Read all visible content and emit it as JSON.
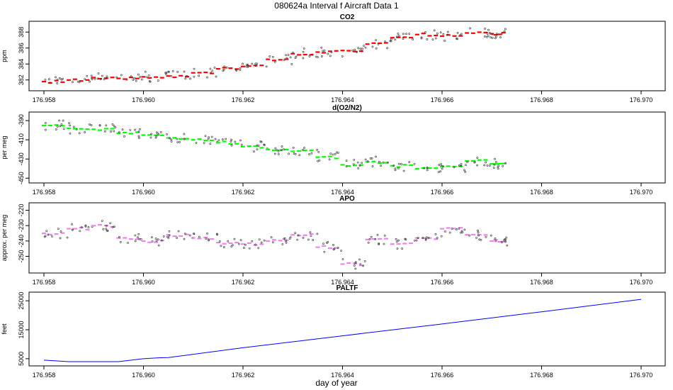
{
  "title": "080624a   Interval f Aircraft Data 1",
  "xlabel": "day of year",
  "chart_data": [
    {
      "type": "scatter",
      "title": "CO2",
      "ylabel": "ppm",
      "xlim": [
        176.958,
        176.97
      ],
      "ylim": [
        381,
        389
      ],
      "xticks": [
        "176.958",
        "176.960",
        "176.962",
        "176.964",
        "176.966",
        "176.968",
        "176.970"
      ],
      "yticks": [
        "382",
        "384",
        "386",
        "388"
      ],
      "color": "#ff0000",
      "series": [
        {
          "x": [
            176.958,
            176.9585,
            176.959,
            176.9595,
            176.96,
            176.9605,
            176.961,
            176.9615,
            176.962,
            176.9625,
            176.963,
            176.9635,
            176.964,
            176.9645,
            176.965,
            176.9655,
            176.966,
            176.9665,
            176.967
          ],
          "values": [
            381.8,
            382.0,
            382.3,
            382.2,
            382.4,
            382.5,
            382.9,
            383.4,
            383.7,
            384.6,
            385.3,
            385.5,
            385.7,
            386.5,
            387.3,
            387.7,
            387.5,
            387.9,
            387.8
          ]
        }
      ]
    },
    {
      "type": "scatter",
      "title": "d(O2/N2)",
      "ylabel": "per meg",
      "xlim": [
        176.958,
        176.97
      ],
      "ylim": [
        -452,
        -384
      ],
      "xticks": [
        "176.958",
        "176.960",
        "176.962",
        "176.964",
        "176.966",
        "176.968",
        "176.970"
      ],
      "yticks": [
        "-390",
        "-410",
        "-430",
        "-450"
      ],
      "color": "#00ff00",
      "series": [
        {
          "x": [
            176.958,
            176.9585,
            176.959,
            176.9595,
            176.96,
            176.9605,
            176.961,
            176.9615,
            176.962,
            176.9625,
            176.963,
            176.9635,
            176.964,
            176.9645,
            176.965,
            176.9655,
            176.966,
            176.9665,
            176.967
          ],
          "values": [
            -395,
            -398,
            -399,
            -403,
            -405,
            -408,
            -410,
            -413,
            -417,
            -420,
            -422,
            -428,
            -436,
            -433,
            -437,
            -440,
            -438,
            -432,
            -435
          ]
        }
      ]
    },
    {
      "type": "scatter",
      "title": "APO",
      "ylabel": "approx. per meg",
      "xlim": [
        176.958,
        176.97
      ],
      "ylim": [
        -259,
        -217
      ],
      "xticks": [
        "176.958",
        "176.960",
        "176.962",
        "176.964",
        "176.966",
        "176.968",
        "176.970"
      ],
      "yticks": [
        "-220",
        "-230",
        "-240",
        "-250"
      ],
      "color": "#ee82ee",
      "series": [
        {
          "x": [
            176.958,
            176.9585,
            176.959,
            176.9595,
            176.96,
            176.9605,
            176.961,
            176.9615,
            176.962,
            176.9625,
            176.963,
            176.9635,
            176.964,
            176.9645,
            176.965,
            176.9655,
            176.966,
            176.9665,
            176.967
          ],
          "values": [
            -235,
            -232,
            -230,
            -238,
            -240,
            -236,
            -238,
            -241,
            -242,
            -240,
            -236,
            -244,
            -255,
            -239,
            -242,
            -238,
            -232,
            -236,
            -240
          ]
        }
      ]
    },
    {
      "type": "line",
      "title": "PALTF",
      "ylabel": "feet",
      "xlim": [
        176.958,
        176.97
      ],
      "ylim": [
        3500,
        27000
      ],
      "xticks": [
        "176.958",
        "176.960",
        "176.962",
        "176.964",
        "176.966",
        "176.968",
        "176.970"
      ],
      "yticks": [
        "5000",
        "15000",
        "25000"
      ],
      "color": "#0000ff",
      "series": [
        {
          "x": [
            176.958,
            176.9585,
            176.9595,
            176.96,
            176.9603,
            176.9605,
            176.962,
            176.964,
            176.966,
            176.968,
            176.97
          ],
          "values": [
            4500,
            4000,
            4000,
            5000,
            5300,
            5400,
            8800,
            12900,
            17000,
            21200,
            25500
          ]
        }
      ]
    }
  ]
}
